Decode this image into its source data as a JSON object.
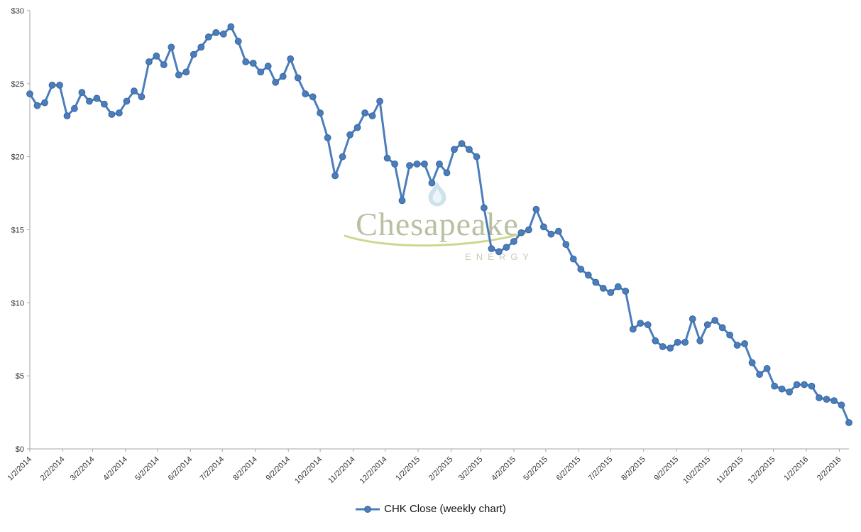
{
  "chart_data": {
    "type": "line",
    "title": "",
    "x_start": "1/2/2014",
    "x_interval": "weekly",
    "series": [
      {
        "name": "CHK Close (weekly chart)",
        "values": [
          24.3,
          23.5,
          23.7,
          24.9,
          24.9,
          22.8,
          23.3,
          24.4,
          23.8,
          24.0,
          23.6,
          22.9,
          23.0,
          23.8,
          24.5,
          24.1,
          26.5,
          26.9,
          26.3,
          27.5,
          25.6,
          25.8,
          27.0,
          27.5,
          28.2,
          28.5,
          28.4,
          28.9,
          27.9,
          26.5,
          26.4,
          25.8,
          26.2,
          25.1,
          25.5,
          26.7,
          25.4,
          24.3,
          24.1,
          23.0,
          21.3,
          18.7,
          20.0,
          21.5,
          22.0,
          23.0,
          22.8,
          23.8,
          19.9,
          19.5,
          17.0,
          19.4,
          19.5,
          19.5,
          18.2,
          19.5,
          18.9,
          20.5,
          20.9,
          20.5,
          20.0,
          16.5,
          13.7,
          13.5,
          13.8,
          14.2,
          14.8,
          15.0,
          16.4,
          15.2,
          14.7,
          14.9,
          14.0,
          13.0,
          12.3,
          11.9,
          11.4,
          11.0,
          10.7,
          11.1,
          10.8,
          8.2,
          8.6,
          8.5,
          7.4,
          7.0,
          6.9,
          7.3,
          7.3,
          8.9,
          7.4,
          8.5,
          8.8,
          8.3,
          7.8,
          7.1,
          7.2,
          5.9,
          5.1,
          5.5,
          4.3,
          4.1,
          3.9,
          4.4,
          4.4,
          4.3,
          3.5,
          3.4,
          3.3,
          3.0,
          1.8
        ]
      }
    ],
    "x_tick_labels": [
      "1/2/2014",
      "2/2/2014",
      "3/2/2014",
      "4/2/2014",
      "5/2/2014",
      "6/2/2014",
      "7/2/2014",
      "8/2/2014",
      "9/2/2014",
      "10/2/2014",
      "11/2/2014",
      "12/2/2014",
      "1/2/2015",
      "2/2/2015",
      "3/2/2015",
      "4/2/2015",
      "5/2/2015",
      "6/2/2015",
      "7/2/2015",
      "8/2/2015",
      "9/2/2015",
      "10/2/2015",
      "11/2/2015",
      "12/2/2015",
      "1/2/2016",
      "2/2/2016"
    ],
    "y_ticks": [
      0,
      5,
      10,
      15,
      20,
      25,
      30
    ],
    "y_tick_labels": [
      "$0",
      "$5",
      "$10",
      "$15",
      "$20",
      "$25",
      "$30"
    ],
    "ylim": [
      0,
      30
    ],
    "grid": false,
    "legend_position": "bottom",
    "line_color": "#4a7ebb",
    "marker_fill": "#4a7ebb",
    "marker_stroke": "#3a65a0",
    "axis_color": "#a6a6a6"
  },
  "legend": {
    "label": "CHK Close (weekly chart)"
  },
  "watermark": {
    "name": "Chesapeake",
    "subtitle": "ENERGY"
  }
}
